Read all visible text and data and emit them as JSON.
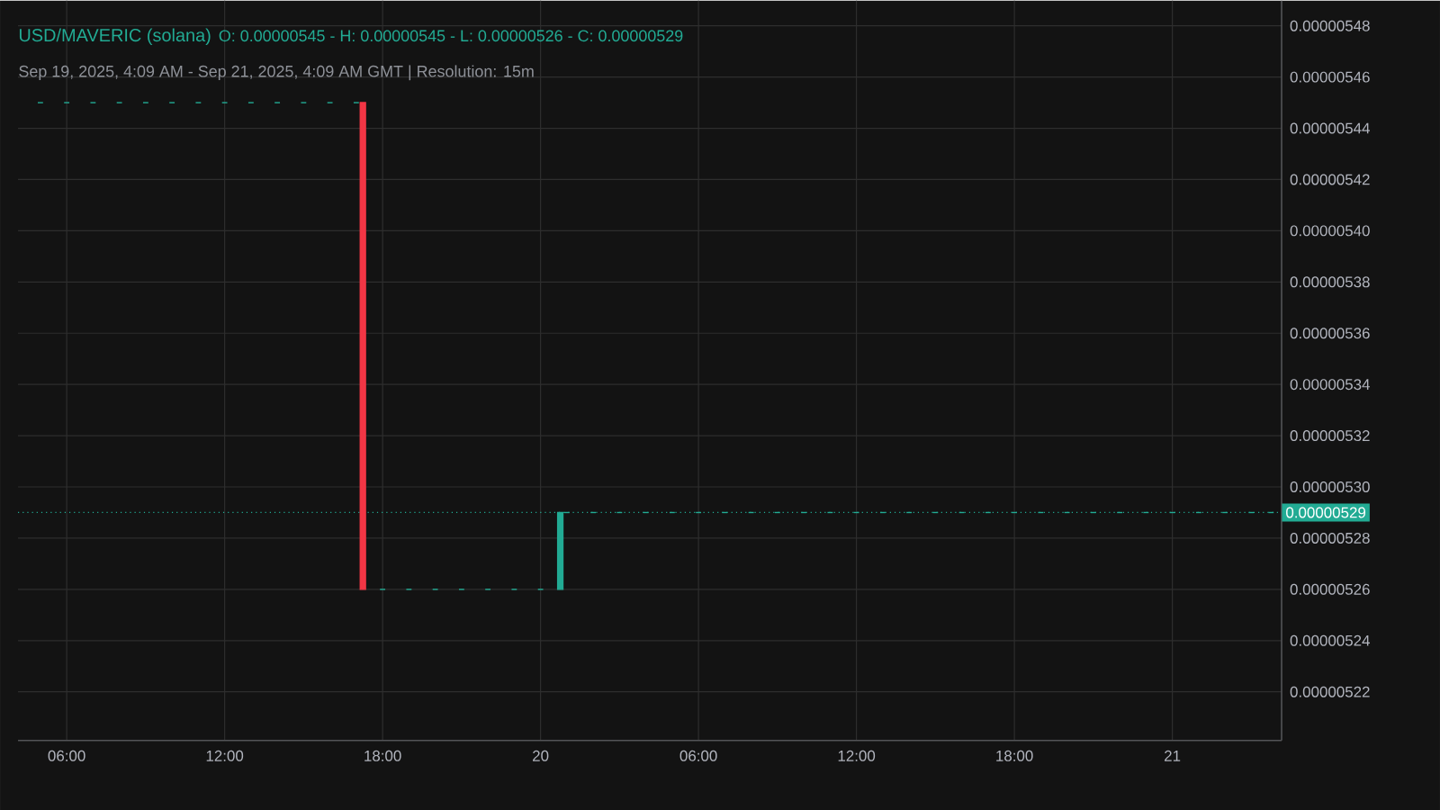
{
  "chart_data": {
    "type": "candlestick",
    "title": "USD/MAVERIC (solana)",
    "subtitle": "Sep 19, 2025, 4:09 AM - Sep 21, 2025, 4:09 AM GMT   |   Resolution: 15m",
    "annotations": [
      "O: 0.00000545 - H: 0.00000545 - L: 0.00000526 - C: 0.00000529"
    ],
    "xlim": [
      "2025-09-19T04:09",
      "2025-09-21T04:09"
    ],
    "xticks": [
      {
        "value": "2025-09-19T06:00",
        "label": "06:00"
      },
      {
        "value": "2025-09-19T12:00",
        "label": "12:00"
      },
      {
        "value": "2025-09-19T18:00",
        "label": "18:00"
      },
      {
        "value": "2025-09-20T00:00",
        "label": "20"
      },
      {
        "value": "2025-09-20T06:00",
        "label": "06:00"
      },
      {
        "value": "2025-09-20T12:00",
        "label": "12:00"
      },
      {
        "value": "2025-09-20T18:00",
        "label": "18:00"
      },
      {
        "value": "2025-09-21T00:00",
        "label": "21"
      }
    ],
    "ylim": [
      5.201e-06,
      5.4898e-06
    ],
    "yticks": [
      {
        "value": 5.22e-06,
        "label": "0.00000522"
      },
      {
        "value": 5.24e-06,
        "label": "0.00000524"
      },
      {
        "value": 5.26e-06,
        "label": "0.00000526"
      },
      {
        "value": 5.28e-06,
        "label": "0.00000528"
      },
      {
        "value": 5.3e-06,
        "label": "0.00000530"
      },
      {
        "value": 5.32e-06,
        "label": "0.00000532"
      },
      {
        "value": 5.34e-06,
        "label": "0.00000534"
      },
      {
        "value": 5.36e-06,
        "label": "0.00000536"
      },
      {
        "value": 5.38e-06,
        "label": "0.00000538"
      },
      {
        "value": 5.4e-06,
        "label": "0.00000540"
      },
      {
        "value": 5.42e-06,
        "label": "0.00000542"
      },
      {
        "value": 5.44e-06,
        "label": "0.00000544"
      },
      {
        "value": 5.46e-06,
        "label": "0.00000546"
      },
      {
        "value": 5.48e-06,
        "label": "0.00000548"
      }
    ],
    "grid": true,
    "ref_lines": [
      {
        "axis": "y",
        "value": 5.29e-06,
        "label": "0.00000529",
        "color": "#22ab94",
        "line_style": "dotted"
      }
    ],
    "series": [
      {
        "color": "#22ab94",
        "x": [
          "2025-09-19T05:00",
          "2025-09-19T06:00",
          "2025-09-19T07:00",
          "2025-09-19T08:00",
          "2025-09-19T09:00",
          "2025-09-19T10:00",
          "2025-09-19T11:00",
          "2025-09-19T12:00",
          "2025-09-19T13:00",
          "2025-09-19T14:00",
          "2025-09-19T15:00",
          "2025-09-19T16:00",
          "2025-09-19T17:00",
          "2025-09-19T18:00",
          "2025-09-19T19:00",
          "2025-09-19T20:00",
          "2025-09-19T21:00",
          "2025-09-19T22:00",
          "2025-09-19T23:00",
          "2025-09-20T00:00",
          "2025-09-20T00:45",
          "2025-09-20T01:00",
          "2025-09-20T02:00",
          "2025-09-20T03:00",
          "2025-09-20T04:00",
          "2025-09-20T05:00",
          "2025-09-20T06:00",
          "2025-09-20T07:00",
          "2025-09-20T08:00",
          "2025-09-20T09:00",
          "2025-09-20T10:00",
          "2025-09-20T11:00",
          "2025-09-20T12:00",
          "2025-09-20T13:00",
          "2025-09-20T14:00",
          "2025-09-20T15:00",
          "2025-09-20T16:00",
          "2025-09-20T17:00",
          "2025-09-20T18:00",
          "2025-09-20T19:00",
          "2025-09-20T20:00",
          "2025-09-20T21:00",
          "2025-09-20T22:00",
          "2025-09-20T23:00",
          "2025-09-21T00:00",
          "2025-09-21T01:00",
          "2025-09-21T02:00",
          "2025-09-21T03:00",
          "2025-09-21T03:45"
        ],
        "ohlc": [
          [
            5.45e-06,
            5.45e-06,
            5.45e-06,
            5.45e-06
          ],
          [
            5.45e-06,
            5.45e-06,
            5.45e-06,
            5.45e-06
          ],
          [
            5.45e-06,
            5.45e-06,
            5.45e-06,
            5.45e-06
          ],
          [
            5.45e-06,
            5.45e-06,
            5.45e-06,
            5.45e-06
          ],
          [
            5.45e-06,
            5.45e-06,
            5.45e-06,
            5.45e-06
          ],
          [
            5.45e-06,
            5.45e-06,
            5.45e-06,
            5.45e-06
          ],
          [
            5.45e-06,
            5.45e-06,
            5.45e-06,
            5.45e-06
          ],
          [
            5.45e-06,
            5.45e-06,
            5.45e-06,
            5.45e-06
          ],
          [
            5.45e-06,
            5.45e-06,
            5.45e-06,
            5.45e-06
          ],
          [
            5.45e-06,
            5.45e-06,
            5.45e-06,
            5.45e-06
          ],
          [
            5.45e-06,
            5.45e-06,
            5.45e-06,
            5.45e-06
          ],
          [
            5.45e-06,
            5.45e-06,
            5.45e-06,
            5.45e-06
          ],
          [
            5.45e-06,
            5.45e-06,
            5.45e-06,
            5.45e-06
          ],
          [
            5.26e-06,
            5.26e-06,
            5.26e-06,
            5.26e-06
          ],
          [
            5.26e-06,
            5.26e-06,
            5.26e-06,
            5.26e-06
          ],
          [
            5.26e-06,
            5.26e-06,
            5.26e-06,
            5.26e-06
          ],
          [
            5.26e-06,
            5.26e-06,
            5.26e-06,
            5.26e-06
          ],
          [
            5.26e-06,
            5.26e-06,
            5.26e-06,
            5.26e-06
          ],
          [
            5.26e-06,
            5.26e-06,
            5.26e-06,
            5.26e-06
          ],
          [
            5.26e-06,
            5.26e-06,
            5.26e-06,
            5.26e-06
          ],
          [
            5.26e-06,
            5.29e-06,
            5.26e-06,
            5.29e-06
          ],
          [
            5.29e-06,
            5.29e-06,
            5.29e-06,
            5.29e-06
          ],
          [
            5.29e-06,
            5.29e-06,
            5.29e-06,
            5.29e-06
          ],
          [
            5.29e-06,
            5.29e-06,
            5.29e-06,
            5.29e-06
          ],
          [
            5.29e-06,
            5.29e-06,
            5.29e-06,
            5.29e-06
          ],
          [
            5.29e-06,
            5.29e-06,
            5.29e-06,
            5.29e-06
          ],
          [
            5.29e-06,
            5.29e-06,
            5.29e-06,
            5.29e-06
          ],
          [
            5.29e-06,
            5.29e-06,
            5.29e-06,
            5.29e-06
          ],
          [
            5.29e-06,
            5.29e-06,
            5.29e-06,
            5.29e-06
          ],
          [
            5.29e-06,
            5.29e-06,
            5.29e-06,
            5.29e-06
          ],
          [
            5.29e-06,
            5.29e-06,
            5.29e-06,
            5.29e-06
          ],
          [
            5.29e-06,
            5.29e-06,
            5.29e-06,
            5.29e-06
          ],
          [
            5.29e-06,
            5.29e-06,
            5.29e-06,
            5.29e-06
          ],
          [
            5.29e-06,
            5.29e-06,
            5.29e-06,
            5.29e-06
          ],
          [
            5.29e-06,
            5.29e-06,
            5.29e-06,
            5.29e-06
          ],
          [
            5.29e-06,
            5.29e-06,
            5.29e-06,
            5.29e-06
          ],
          [
            5.29e-06,
            5.29e-06,
            5.29e-06,
            5.29e-06
          ],
          [
            5.29e-06,
            5.29e-06,
            5.29e-06,
            5.29e-06
          ],
          [
            5.29e-06,
            5.29e-06,
            5.29e-06,
            5.29e-06
          ],
          [
            5.29e-06,
            5.29e-06,
            5.29e-06,
            5.29e-06
          ],
          [
            5.29e-06,
            5.29e-06,
            5.29e-06,
            5.29e-06
          ],
          [
            5.29e-06,
            5.29e-06,
            5.29e-06,
            5.29e-06
          ],
          [
            5.29e-06,
            5.29e-06,
            5.29e-06,
            5.29e-06
          ],
          [
            5.29e-06,
            5.29e-06,
            5.29e-06,
            5.29e-06
          ],
          [
            5.29e-06,
            5.29e-06,
            5.29e-06,
            5.29e-06
          ],
          [
            5.29e-06,
            5.29e-06,
            5.29e-06,
            5.29e-06
          ],
          [
            5.29e-06,
            5.29e-06,
            5.29e-06,
            5.29e-06
          ],
          [
            5.29e-06,
            5.29e-06,
            5.29e-06,
            5.29e-06
          ],
          [
            5.29e-06,
            5.29e-06,
            5.29e-06,
            5.29e-06
          ]
        ]
      },
      {
        "color": "#f23645",
        "x": [
          "2025-09-19T17:15"
        ],
        "ohlc": [
          [
            5.45e-06,
            5.45e-06,
            5.26e-06,
            5.26e-06
          ]
        ]
      }
    ]
  }
}
